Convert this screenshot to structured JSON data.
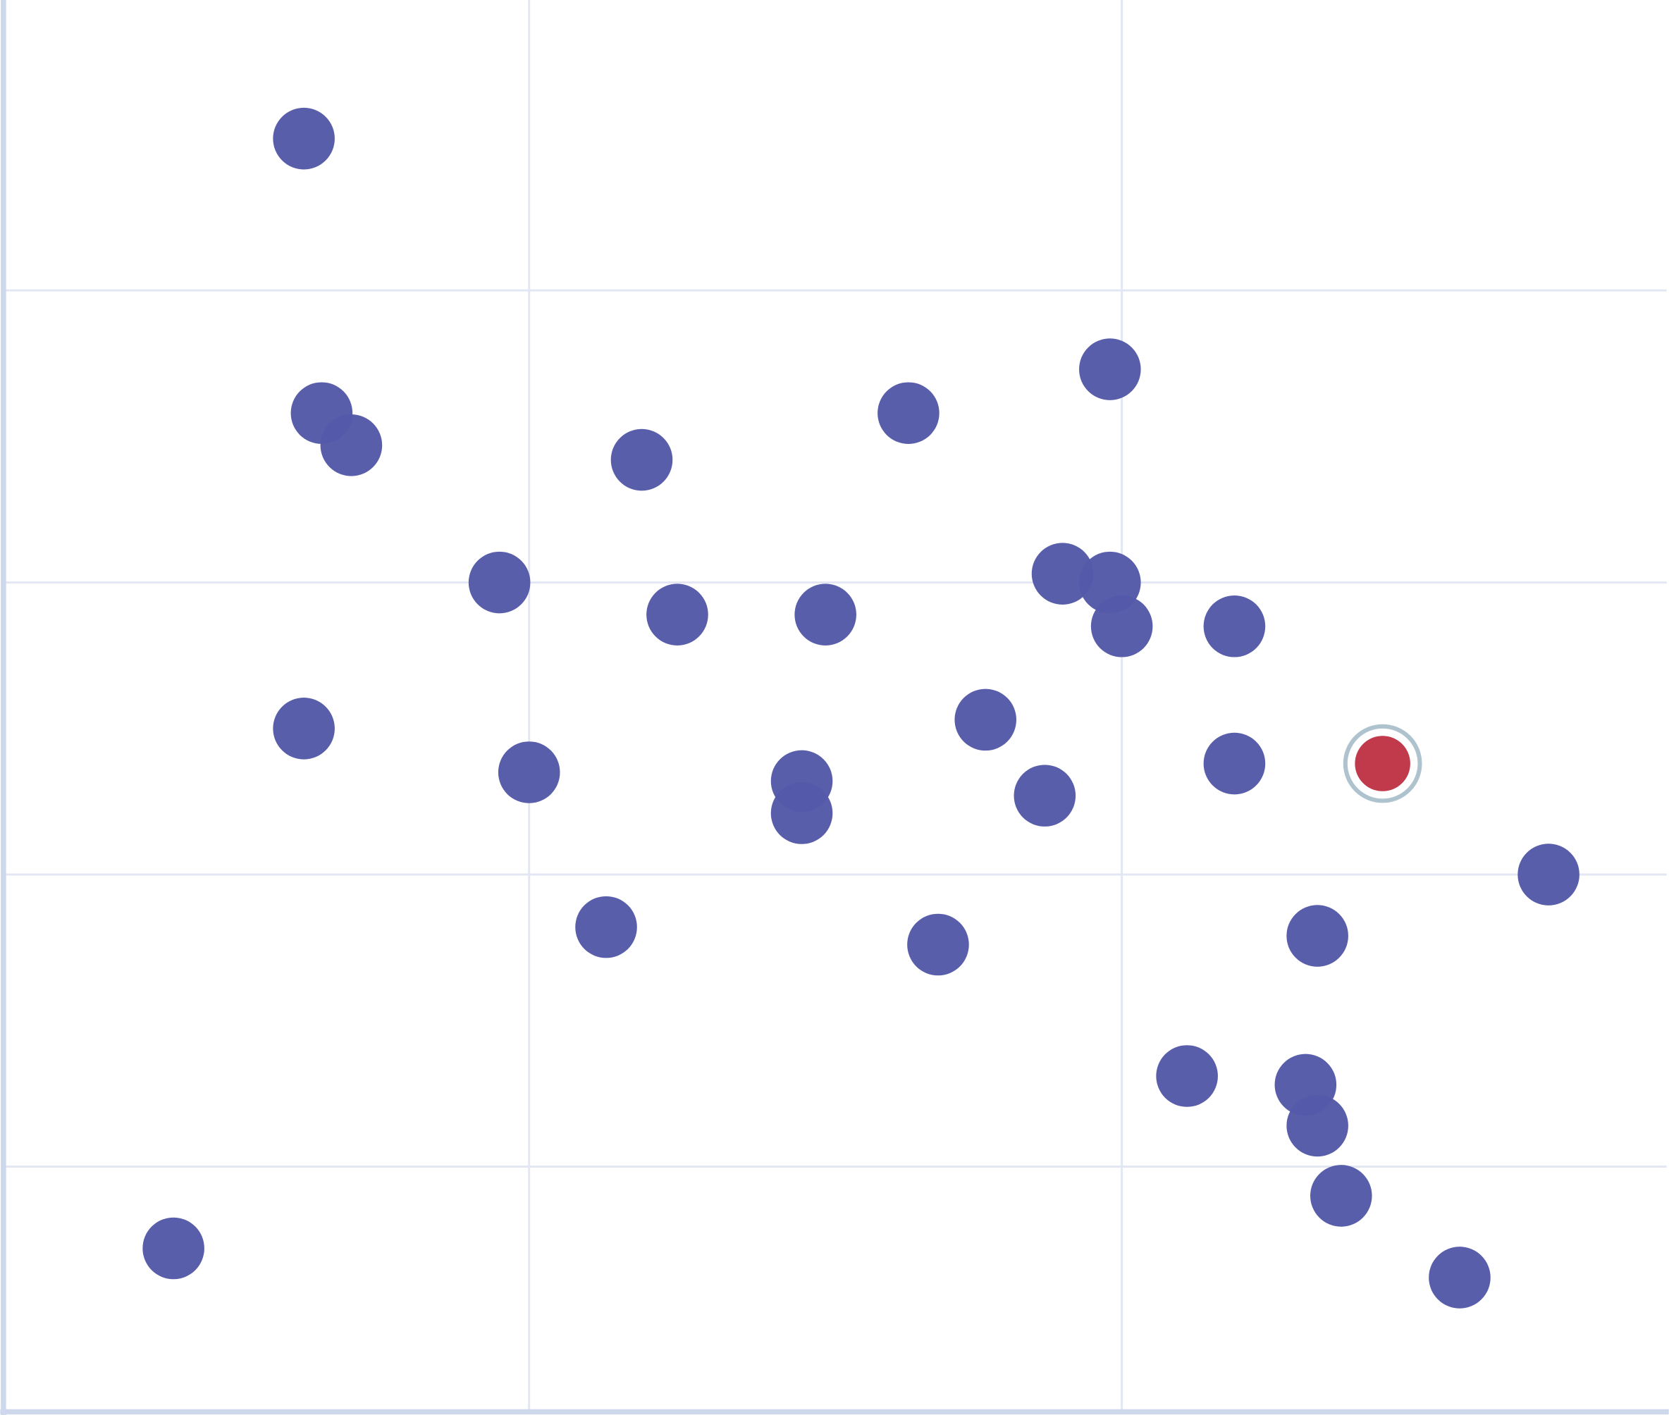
{
  "chart_data": {
    "type": "scatter",
    "title": "",
    "xlabel": "",
    "ylabel": "",
    "xlim": [
      0.117,
      2.93
    ],
    "ylim": [
      0.16,
      4.99
    ],
    "grid": true,
    "x_gridlines": [
      1,
      2
    ],
    "y_gridlines": [
      1,
      2,
      3,
      4
    ],
    "legend": "none",
    "colors": {
      "points": "#5459A8",
      "highlight": "#C03A4C",
      "highlight_ring": "#AEC3CD",
      "grid": "#E3E7F3",
      "axis": "#CDD8EC"
    },
    "series": [
      {
        "points": [
          [
            0.62,
            4.52
          ],
          [
            0.65,
            3.58
          ],
          [
            0.7,
            3.47
          ],
          [
            1.19,
            3.42
          ],
          [
            1.64,
            3.58
          ],
          [
            1.98,
            3.73
          ],
          [
            0.95,
            3.0
          ],
          [
            1.25,
            2.89
          ],
          [
            1.5,
            2.89
          ],
          [
            1.9,
            3.03
          ],
          [
            1.98,
            3.0
          ],
          [
            2.0,
            2.85
          ],
          [
            2.19,
            2.85
          ],
          [
            0.62,
            2.5
          ],
          [
            1.0,
            2.35
          ],
          [
            1.46,
            2.32
          ],
          [
            1.46,
            2.21
          ],
          [
            1.77,
            2.53
          ],
          [
            1.87,
            2.27
          ],
          [
            2.19,
            2.38
          ],
          [
            2.72,
            2.0
          ],
          [
            1.13,
            1.82
          ],
          [
            1.69,
            1.76
          ],
          [
            2.33,
            1.79
          ],
          [
            2.11,
            1.31
          ],
          [
            2.31,
            1.28
          ],
          [
            2.33,
            1.14
          ],
          [
            2.37,
            0.9
          ],
          [
            0.4,
            0.72
          ],
          [
            2.57,
            0.62
          ]
        ]
      }
    ],
    "highlighted_point": [
      2.44,
      2.38
    ]
  }
}
